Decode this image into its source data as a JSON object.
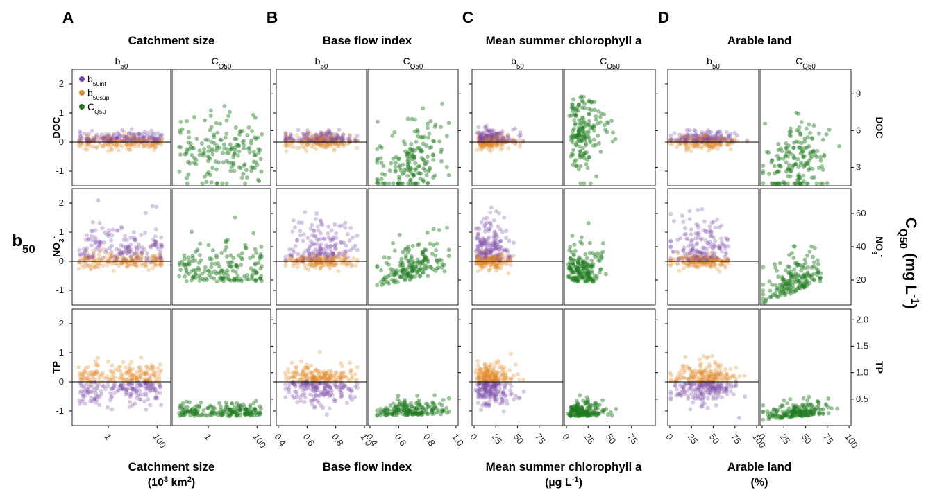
{
  "figure": {
    "left_axis_title": "b",
    "left_axis_title_sub": "50",
    "right_axis_title_main": "C",
    "right_axis_title_sub": "Q50",
    "right_axis_title_unit_open": " (mg L",
    "right_axis_title_unit_sup": "-1",
    "right_axis_title_unit_close": ")",
    "legend": [
      {
        "label": "b",
        "sub": "50inf",
        "color": "#7b4aa5"
      },
      {
        "label": "b",
        "sub": "50sup",
        "color": "#e08a2c"
      },
      {
        "label": "C",
        "sub": "Q50",
        "color": "#1f7a1f"
      }
    ],
    "colors": {
      "b50inf": "#7b4aa5",
      "b50sup": "#e08a2c",
      "cq50": "#1f7a1f"
    },
    "rows": [
      {
        "label": "DOC",
        "sub": "",
        "sup": "",
        "right_label": "DOC",
        "right_sub": "",
        "right_sup": ""
      },
      {
        "label": "NO",
        "sub": "3",
        "sup": "-",
        "right_label": "NO",
        "right_sub": "3",
        "right_sup": "-"
      },
      {
        "label": "TP",
        "sub": "",
        "sup": "",
        "right_label": "TP",
        "right_sub": "",
        "right_sup": ""
      }
    ],
    "b50_ticks": [
      "-1",
      "0",
      "1",
      "2"
    ],
    "cq50_ticks": [
      [
        "3",
        "6",
        "9"
      ],
      [
        "20",
        "40",
        "60"
      ],
      [
        "0.5",
        "1.0",
        "1.5",
        "2.0"
      ]
    ],
    "sub_left": "b",
    "sub_left_sub": "50",
    "sub_right": "C",
    "sub_right_sub": "Q50"
  },
  "chart_data": [
    {
      "letter": "A",
      "title": "Catchment size",
      "type": "scatter",
      "log_x": true,
      "xlabel_line1": "Catchment size",
      "xlabel_line2": "(10",
      "xlabel_line2_sup": "3",
      "xlabel_line2_tail": " km",
      "xlabel_line2_sup2": "2",
      "xlabel_line2_end": ")",
      "x_ticks": [
        "1",
        "100"
      ],
      "x_tick_values": [
        1,
        100
      ],
      "xlim": [
        0.04,
        300
      ],
      "b50_ylim": [
        -1.5,
        2.5
      ],
      "cq50_ylims": [
        [
          1.5,
          11
        ],
        [
          5,
          75
        ],
        [
          0,
          2.2
        ]
      ],
      "cq50_trend": [
        [
          0,
          0
        ],
        [
          0,
          0
        ],
        [
          0,
          0
        ]
      ]
    },
    {
      "letter": "B",
      "title": "Base flow index",
      "type": "scatter",
      "log_x": false,
      "xlabel_line1": "Base flow index",
      "xlabel_line2": "",
      "xlabel_line2_sup": "",
      "xlabel_line2_tail": "",
      "xlabel_line2_sup2": "",
      "xlabel_line2_end": "",
      "x_ticks": [
        "0.4",
        "0.6",
        "0.8",
        "1.0"
      ],
      "x_tick_values": [
        0.4,
        0.6,
        0.8,
        1.0
      ],
      "xlim": [
        0.4,
        1.0
      ],
      "b50_ylim": [
        -1.5,
        2.5
      ],
      "cq50_ylims": [
        [
          1.5,
          11
        ],
        [
          5,
          75
        ],
        [
          0,
          2.2
        ]
      ],
      "cq50_trend": [
        [
          0.95,
          -0.8
        ],
        [
          -0.2,
          0.5
        ],
        [
          0,
          0.1
        ]
      ]
    },
    {
      "letter": "C",
      "title": "Mean summer chlorophyll a",
      "type": "scatter",
      "log_x": false,
      "xlabel_line1": "Mean summer chlorophyll a",
      "xlabel_line2": "(µg L",
      "xlabel_line2_sup": "-1",
      "xlabel_line2_tail": ")",
      "xlabel_line2_sup2": "",
      "xlabel_line2_end": "",
      "x_ticks": [
        "0",
        "25",
        "50",
        "75"
      ],
      "x_tick_values": [
        0,
        25,
        50,
        75
      ],
      "xlim": [
        0,
        100
      ],
      "b50_ylim": [
        -1.5,
        2.5
      ],
      "cq50_ylims": [
        [
          1.5,
          11
        ],
        [
          5,
          75
        ],
        [
          0,
          2.2
        ]
      ],
      "cq50_trend": [
        [
          0.3,
          0.4
        ],
        [
          0,
          0
        ],
        [
          0,
          0
        ]
      ]
    },
    {
      "letter": "D",
      "title": "Arable land",
      "type": "scatter",
      "log_x": false,
      "xlabel_line1": "Arable land",
      "xlabel_line2": "(%)",
      "xlabel_line2_sup": "",
      "xlabel_line2_tail": "",
      "xlabel_line2_sup2": "",
      "xlabel_line2_end": "",
      "x_ticks": [
        "0",
        "25",
        "50",
        "75",
        "100"
      ],
      "x_tick_values": [
        0,
        25,
        50,
        75,
        100
      ],
      "xlim": [
        0,
        100
      ],
      "b50_ylim": [
        -1.5,
        2.5
      ],
      "cq50_ylims": [
        [
          1.5,
          11
        ],
        [
          5,
          75
        ],
        [
          0,
          2.2
        ]
      ],
      "cq50_trend": [
        [
          0.5,
          -0.5
        ],
        [
          -0.6,
          0.9
        ],
        [
          -0.2,
          0.4
        ]
      ]
    }
  ]
}
